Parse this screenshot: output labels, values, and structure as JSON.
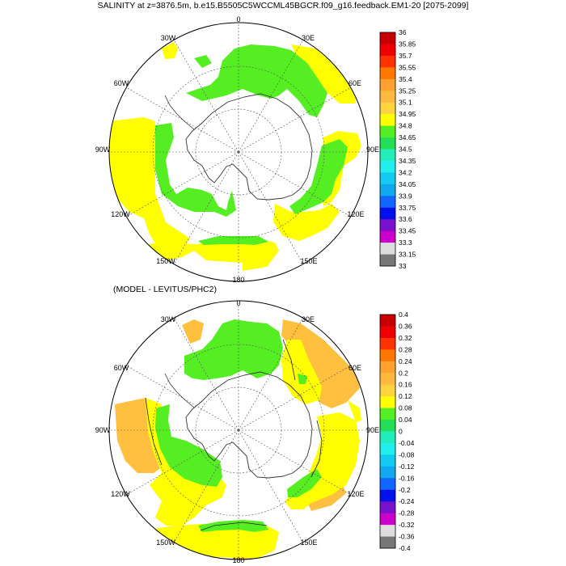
{
  "panels": [
    {
      "title": "SALINITY at z=3876.5m, b.e15.B5505C5WCCML45BGCR.f09_g16.feedback.EM1-20 [2075-2099]",
      "lon_labels": [
        "0",
        "30E",
        "60E",
        "90E",
        "120E",
        "150E",
        "180",
        "150W",
        "120W",
        "90W",
        "60W",
        "30W"
      ],
      "colorbar_labels": [
        "36",
        "35.85",
        "35.7",
        "35.55",
        "35.4",
        "35.25",
        "35.1",
        "34.95",
        "34.8",
        "34.65",
        "34.5",
        "34.35",
        "34.2",
        "34.05",
        "33.9",
        "33.75",
        "33.6",
        "33.45",
        "33.3",
        "33.15",
        "33"
      ],
      "colorbar_colors": [
        "#c80000",
        "#ee0000",
        "#ff3300",
        "#ff7700",
        "#ffa030",
        "#ffb840",
        "#ffd240",
        "#ffff00",
        "#55ee22",
        "#22dd55",
        "#22eebb",
        "#22eeee",
        "#11ccf0",
        "#11a8f0",
        "#1166ff",
        "#0011ee",
        "#7711cc",
        "#cc00cc",
        "#dddddd",
        "#777777"
      ],
      "regions": [
        {
          "kind": "field",
          "level": "34.95-35.1 (yellow)"
        },
        {
          "kind": "field",
          "level": "34.8-34.95 (green)"
        }
      ]
    },
    {
      "title": "(MODEL - LEVITUS/PHC2)",
      "lon_labels": [
        "0",
        "30E",
        "60E",
        "90E",
        "120E",
        "150E",
        "180",
        "150W",
        "120W",
        "90W",
        "60W",
        "30W"
      ],
      "colorbar_labels": [
        "0.4",
        "0.36",
        "0.32",
        "0.28",
        "0.24",
        "0.2",
        "0.16",
        "0.12",
        "0.08",
        "0.04",
        "0",
        "-0.04",
        "-0.08",
        "-0.12",
        "-0.16",
        "-0.2",
        "-0.24",
        "-0.28",
        "-0.32",
        "-0.36",
        "-0.4"
      ],
      "colorbar_colors": [
        "#c80000",
        "#ee0000",
        "#ff3300",
        "#ff7700",
        "#ffa030",
        "#ffb840",
        "#ffd240",
        "#ffff00",
        "#55ee22",
        "#22dd55",
        "#22eebb",
        "#22eeee",
        "#11ccf0",
        "#11a8f0",
        "#1166ff",
        "#0011ee",
        "#7711cc",
        "#cc00cc",
        "#dddddd",
        "#777777"
      ]
    }
  ],
  "colors": {
    "yellow": "#ffff00",
    "green": "#55ee22",
    "orange": "#ffc040",
    "coast": "#333333",
    "grid": "#555555"
  }
}
